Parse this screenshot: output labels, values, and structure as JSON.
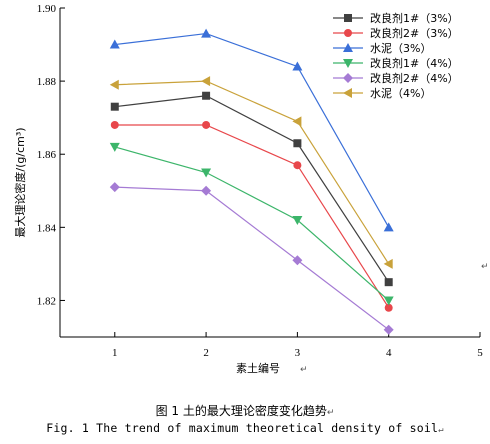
{
  "chart_data": {
    "type": "line",
    "title": "",
    "xlabel": "素土编号",
    "ylabel": "最大理论密度/(g/cm³)",
    "xlim": [
      0.4,
      5
    ],
    "ylim": [
      1.81,
      1.9
    ],
    "x_ticks": [
      "1",
      "2",
      "3",
      "4",
      "5"
    ],
    "y_ticks": [
      "1.82",
      "1.84",
      "1.86",
      "1.88",
      "1.90"
    ],
    "x": [
      1,
      2,
      3,
      4
    ],
    "grid": false,
    "legend_position": "top-right",
    "series": [
      {
        "name": "改良剂1#（3%）",
        "color": "#404040",
        "marker": "square",
        "values": [
          1.873,
          1.876,
          1.863,
          1.825
        ]
      },
      {
        "name": "改良剂2#（3%）",
        "color": "#e8474b",
        "marker": "circle",
        "values": [
          1.868,
          1.868,
          1.857,
          1.818
        ]
      },
      {
        "name": "水泥（3%）",
        "color": "#3a6fd8",
        "marker": "triangle-up",
        "values": [
          1.89,
          1.893,
          1.884,
          1.84
        ]
      },
      {
        "name": "改良剂1#（4%）",
        "color": "#3cb56a",
        "marker": "triangle-down",
        "values": [
          1.862,
          1.855,
          1.842,
          1.82
        ]
      },
      {
        "name": "改良剂2#（4%）",
        "color": "#a57bd4",
        "marker": "diamond",
        "values": [
          1.851,
          1.85,
          1.831,
          1.812
        ]
      },
      {
        "name": "水泥（4%）",
        "color": "#c9a23a",
        "marker": "triangle-left",
        "values": [
          1.879,
          1.88,
          1.869,
          1.83
        ]
      }
    ]
  },
  "caption": {
    "cn": "图 1  土的最大理论密度变化趋势",
    "en": "Fig. 1  The trend of maximum theoretical density of soil"
  },
  "paragraph_mark": "↵"
}
